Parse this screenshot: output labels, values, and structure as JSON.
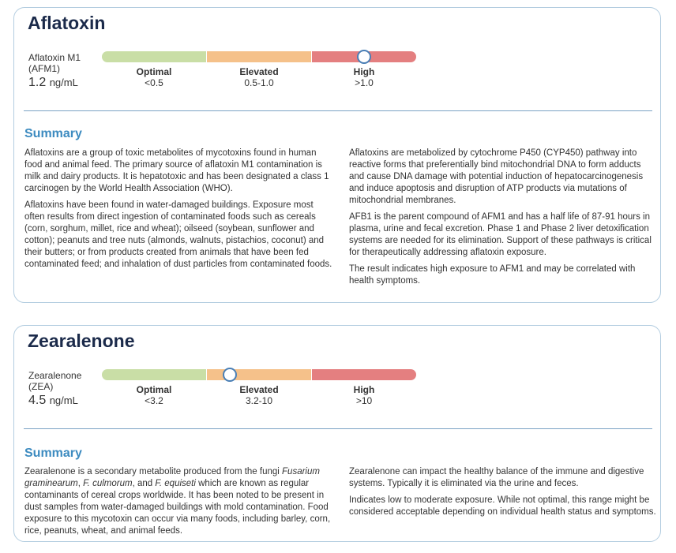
{
  "colors": {
    "optimal": "#c9dea6",
    "elevated": "#f5c18a",
    "high": "#e47f80",
    "marker_border": "#4a7fb5",
    "heading": "#1b2a4a",
    "summary_heading": "#3d8bc0"
  },
  "sections": [
    {
      "title": "Aflatoxin",
      "analyte_name": "Aflatoxin M1 (AFM1)",
      "value": "1.2",
      "unit": "ng/mL",
      "marker_position_fraction": 0.835,
      "ranges": {
        "optimal": {
          "name": "Optimal",
          "value": "<0.5"
        },
        "elevated": {
          "name": "Elevated",
          "value": "0.5-1.0"
        },
        "high": {
          "name": "High",
          "value": ">1.0"
        }
      },
      "summary_heading": "Summary",
      "left_paragraphs": [
        "Aflatoxins are a group of toxic metabolites of mycotoxins found in human food and animal feed. The primary source of aflatoxin M1 contamination is milk and dairy products. It is hepatotoxic and has been designated a class 1 carcinogen by the World Health Association (WHO).",
        "Aflatoxins have been found in water-damaged buildings. Exposure most often results from direct ingestion of contaminated foods such as cereals (corn, sorghum, millet, rice and wheat); oilseed (soybean, sunflower and cotton); peanuts and tree nuts (almonds, walnuts, pistachios, coconut) and their butters; or from products created from animals that have been fed contaminated feed; and inhalation of dust particles from contaminated foods."
      ],
      "right_paragraphs": [
        "Aflatoxins are metabolized by cytochrome P450 (CYP450) pathway into reactive forms that preferentially bind mitochondrial DNA to form adducts and cause DNA damage with potential induction of hepatocarcinogenesis and induce apoptosis and disruption of ATP products via mutations of mitochondrial membranes.",
        "AFB1 is the parent compound of AFM1 and has a half life of 87-91 hours in plasma, urine and fecal excretion. Phase 1 and Phase 2 liver detoxification systems are needed for its elimination. Support of these pathways is critical for therapeutically addressing aflatoxin exposure.",
        "The result indicates high exposure to AFM1 and may be correlated with health symptoms."
      ]
    },
    {
      "title": "Zearalenone",
      "analyte_name": "Zearalenone (ZEA)",
      "value": "4.5",
      "unit": "ng/mL",
      "marker_position_fraction": 0.408,
      "ranges": {
        "optimal": {
          "name": "Optimal",
          "value": "<3.2"
        },
        "elevated": {
          "name": "Elevated",
          "value": "3.2-10"
        },
        "high": {
          "name": "High",
          "value": ">10"
        }
      },
      "summary_heading": "Summary",
      "left_paragraph_parts": [
        {
          "text": "Zearalenone is a secondary metabolite produced from the fungi ",
          "italic": false
        },
        {
          "text": "Fusarium graminearum",
          "italic": true
        },
        {
          "text": ", ",
          "italic": false
        },
        {
          "text": "F. culmorum",
          "italic": true
        },
        {
          "text": ", and ",
          "italic": false
        },
        {
          "text": "F. equiseti",
          "italic": true
        },
        {
          "text": " which are known as regular contaminants of cereal crops worldwide. It has been noted to be present in dust samples from water-damaged buildings with mold contamination. Food exposure to this mycotoxin can occur via many foods, including barley, corn, rice, peanuts, wheat, and animal feeds.",
          "italic": false
        }
      ],
      "right_paragraphs": [
        "Zearalenone can impact the healthy balance of the immune and digestive systems. Typically it is eliminated via the urine and feces.",
        "Indicates low to moderate exposure. While not optimal, this range might be considered acceptable depending on individual health status and symptoms."
      ]
    }
  ]
}
